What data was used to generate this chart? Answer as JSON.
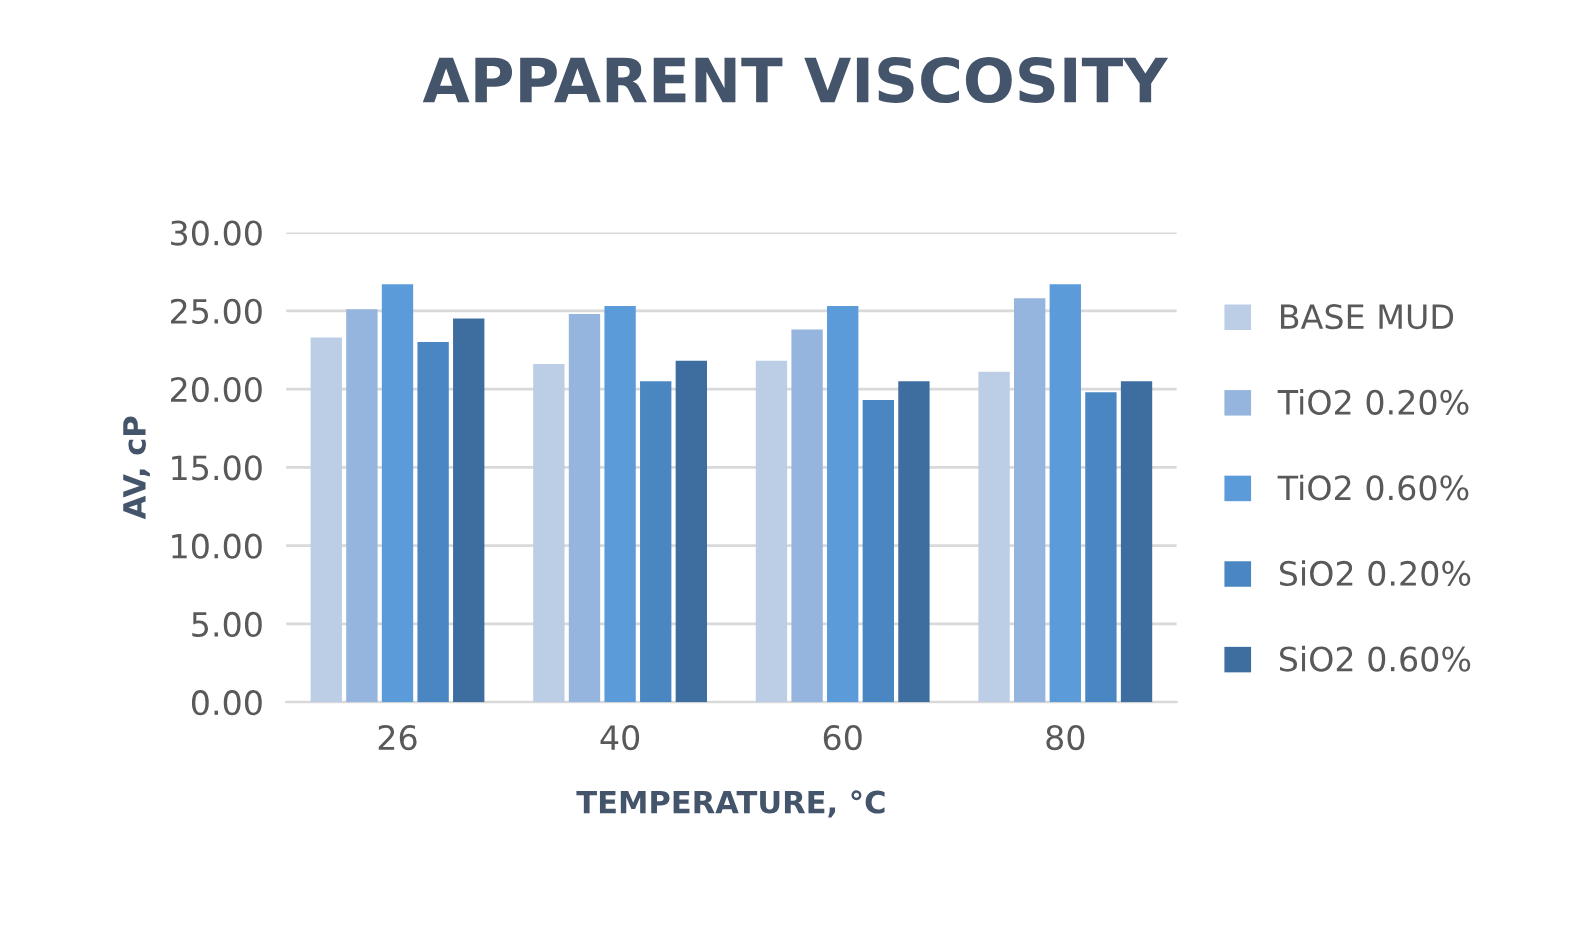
{
  "chart_data": {
    "type": "bar",
    "title": "APPARENT VISCOSITY",
    "xlabel": "TEMPERATURE, °C",
    "ylabel": "AV, cP",
    "categories": [
      "26",
      "40",
      "60",
      "80"
    ],
    "series": [
      {
        "name": "BASE MUD",
        "color": "#bccde6",
        "values": [
          23.3,
          21.6,
          21.8,
          21.1
        ]
      },
      {
        "name": "TiO2 0.20%",
        "color": "#95b5de",
        "values": [
          25.1,
          24.8,
          23.8,
          25.8
        ]
      },
      {
        "name": "TiO2 0.60%",
        "color": "#5b9bd9",
        "values": [
          26.7,
          25.3,
          25.3,
          26.7
        ]
      },
      {
        "name": "SiO2 0.20%",
        "color": "#4a86c1",
        "values": [
          23.0,
          20.5,
          19.3,
          19.8
        ]
      },
      {
        "name": "SiO2 0.60%",
        "color": "#3e6e9f",
        "values": [
          24.5,
          21.8,
          20.5,
          20.5
        ]
      }
    ],
    "ylim": [
      0,
      30
    ],
    "yticks": [
      {
        "value": 0,
        "label": "0.00"
      },
      {
        "value": 5,
        "label": "5.00"
      },
      {
        "value": 10,
        "label": "10.00"
      },
      {
        "value": 15,
        "label": "15.00"
      },
      {
        "value": 20,
        "label": "20.00"
      },
      {
        "value": 25,
        "label": "25.00"
      },
      {
        "value": 30,
        "label": "30.00"
      }
    ],
    "grid": "y",
    "legend": "right"
  }
}
